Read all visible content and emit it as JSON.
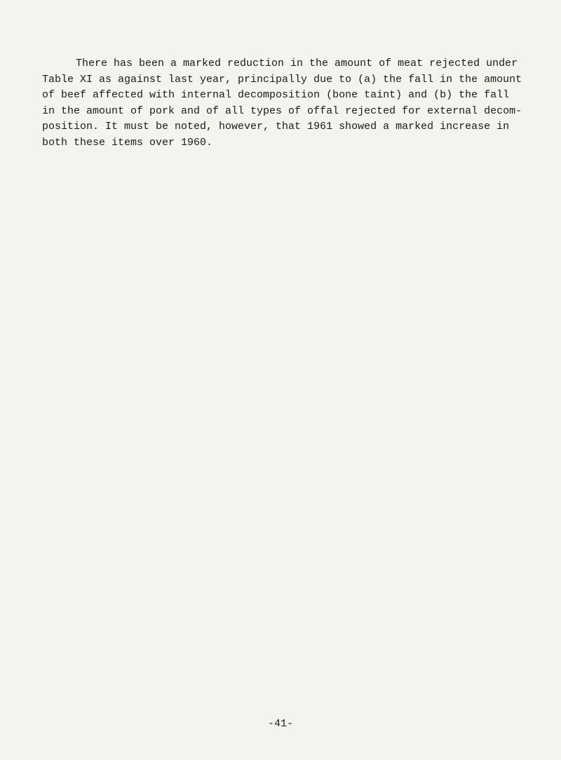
{
  "paragraph": "There has been a marked reduction in the amount of meat rejected under Table XI as against last year, principally due to (a) the fall in the amount of beef affected with internal decomposition (bone taint) and (b) the fall in the amount of pork and of all types of offal rejected for external decom­position.   It must be noted, however, that 1961 showed a marked increase in both these items over 1960.",
  "page_number": "-41-",
  "colors": {
    "background": "#f5f3ee",
    "text": "#1a1a1a"
  },
  "typography": {
    "font_family": "Courier New",
    "font_size_pt": 11,
    "line_height": 1.5
  }
}
